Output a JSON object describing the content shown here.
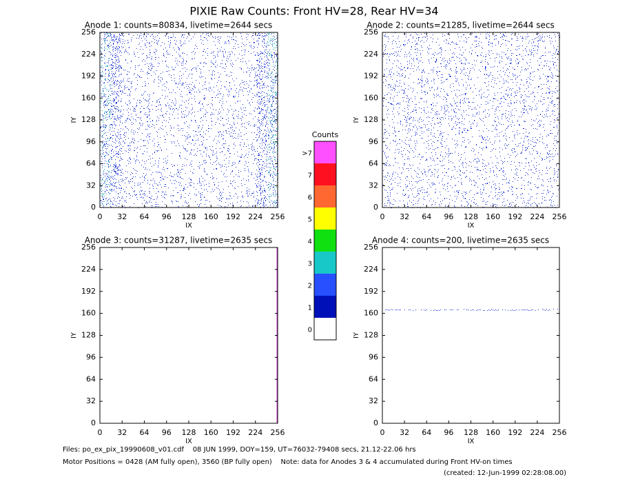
{
  "title": "PIXIE Raw Counts:  Front HV=28, Rear HV=34",
  "chart_data": [
    {
      "type": "heatmap",
      "title": "Anode 1: counts=80834, livetime=2644 secs",
      "xlabel": "IX",
      "ylabel": "IY",
      "xlim": [
        0,
        256
      ],
      "ylim": [
        0,
        256
      ],
      "xticks": [
        0,
        32,
        64,
        96,
        128,
        160,
        192,
        224,
        256
      ],
      "yticks": [
        0,
        32,
        64,
        96,
        128,
        160,
        192,
        224,
        256
      ]
    },
    {
      "type": "heatmap",
      "title": "Anode 2: counts=21285, livetime=2644 secs",
      "xlabel": "IX",
      "ylabel": "IY",
      "xlim": [
        0,
        256
      ],
      "ylim": [
        0,
        256
      ],
      "xticks": [
        0,
        32,
        64,
        96,
        128,
        160,
        192,
        224,
        256
      ],
      "yticks": [
        0,
        32,
        64,
        96,
        128,
        160,
        192,
        224,
        256
      ]
    },
    {
      "type": "heatmap",
      "title": "Anode 3: counts=31287, livetime=2635 secs",
      "xlabel": "IX",
      "ylabel": "IY",
      "xlim": [
        0,
        256
      ],
      "ylim": [
        0,
        256
      ],
      "xticks": [
        0,
        32,
        64,
        96,
        128,
        160,
        192,
        224,
        256
      ],
      "yticks": [
        0,
        32,
        64,
        96,
        128,
        160,
        192,
        224,
        256
      ]
    },
    {
      "type": "heatmap",
      "title": "Anode 4: counts=200, livetime=2635 secs",
      "xlabel": "IX",
      "ylabel": "IY",
      "xlim": [
        0,
        256
      ],
      "ylim": [
        0,
        256
      ],
      "xticks": [
        0,
        32,
        64,
        96,
        128,
        160,
        192,
        224,
        256
      ],
      "yticks": [
        0,
        32,
        64,
        96,
        128,
        160,
        192,
        224,
        256
      ]
    }
  ],
  "colorbar": {
    "title": "Counts",
    "levels": [
      0,
      1,
      2,
      3,
      4,
      5,
      6,
      7,
      {
        "value": 8,
        "label": ">7"
      }
    ],
    "colors": [
      "#ffffff",
      "#0010b8",
      "#2850ff",
      "#18c8c8",
      "#10e010",
      "#ffff00",
      "#ff6830",
      "#ff1020",
      "#ff50ff"
    ]
  },
  "footer": {
    "files": "Files: po_ex_pix_19990608_v01.cdf    08 JUN 1999, DOY=159, UT=76032-79408 secs, 21.12-22.06 hrs",
    "motor": "Motor Positions = 0428 (AM fully open), 3560 (BP fully open)    Note: data for Anodes 3 & 4 accumulated during Front HV-on times",
    "created": "(created: 12-Jun-1999 02:28:08.00)"
  }
}
